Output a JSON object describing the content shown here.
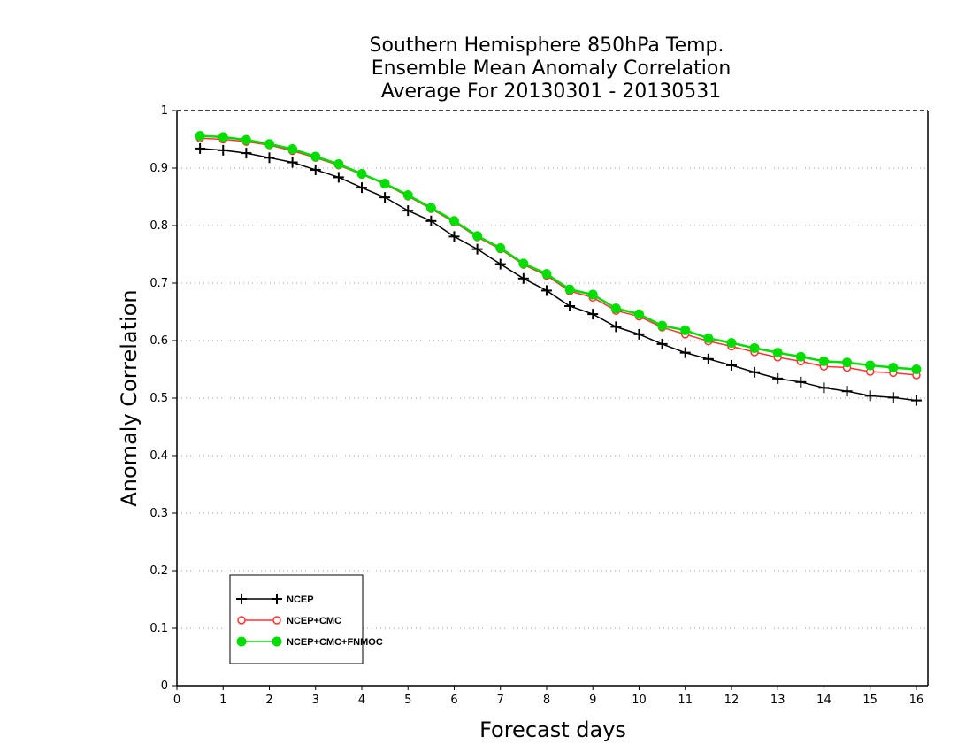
{
  "chart_data": {
    "type": "line",
    "title": [
      "Southern Hemisphere 850hPa Temp.",
      "Ensemble Mean Anomaly Correlation",
      "Average For 20130301 - 20130531"
    ],
    "xlabel": "Forecast days",
    "ylabel": "Anomaly Correlation",
    "xlim": [
      0,
      16.25
    ],
    "ylim": [
      0,
      1
    ],
    "xticks": [
      0,
      1,
      2,
      3,
      4,
      5,
      6,
      7,
      8,
      9,
      10,
      11,
      12,
      13,
      14,
      15,
      16
    ],
    "yticks": [
      0,
      0.1,
      0.2,
      0.3,
      0.4,
      0.5,
      0.6,
      0.7,
      0.8,
      0.9,
      1
    ],
    "grid": true,
    "legend_position": "bottom-left",
    "x": [
      0.5,
      1,
      1.5,
      2,
      2.5,
      3,
      3.5,
      4,
      4.5,
      5,
      5.5,
      6,
      6.5,
      7,
      7.5,
      8,
      8.5,
      9,
      9.5,
      10,
      10.5,
      11,
      11.5,
      12,
      12.5,
      13,
      13.5,
      14,
      14.5,
      15,
      15.5,
      16
    ],
    "series": [
      {
        "name": "NCEP",
        "color": "#000000",
        "marker": "plus",
        "values": [
          0.934,
          0.931,
          0.926,
          0.918,
          0.91,
          0.897,
          0.884,
          0.866,
          0.849,
          0.826,
          0.808,
          0.781,
          0.759,
          0.733,
          0.708,
          0.687,
          0.66,
          0.646,
          0.624,
          0.611,
          0.594,
          0.579,
          0.568,
          0.557,
          0.545,
          0.534,
          0.528,
          0.518,
          0.512,
          0.504,
          0.501,
          0.496
        ]
      },
      {
        "name": "NCEP+CMC",
        "color": "#ff3333",
        "marker": "open-circle",
        "values": [
          0.952,
          0.95,
          0.946,
          0.94,
          0.93,
          0.918,
          0.905,
          0.889,
          0.872,
          0.851,
          0.829,
          0.806,
          0.78,
          0.759,
          0.732,
          0.713,
          0.686,
          0.675,
          0.652,
          0.642,
          0.623,
          0.611,
          0.599,
          0.59,
          0.58,
          0.571,
          0.564,
          0.555,
          0.553,
          0.546,
          0.544,
          0.54
        ]
      },
      {
        "name": "NCEP+CMC+FNMOC",
        "color": "#00dd00",
        "marker": "filled-circle",
        "values": [
          0.956,
          0.954,
          0.949,
          0.942,
          0.933,
          0.92,
          0.907,
          0.89,
          0.873,
          0.853,
          0.831,
          0.808,
          0.782,
          0.761,
          0.734,
          0.716,
          0.689,
          0.68,
          0.656,
          0.646,
          0.626,
          0.618,
          0.604,
          0.596,
          0.587,
          0.579,
          0.572,
          0.564,
          0.562,
          0.557,
          0.553,
          0.55
        ]
      }
    ]
  }
}
